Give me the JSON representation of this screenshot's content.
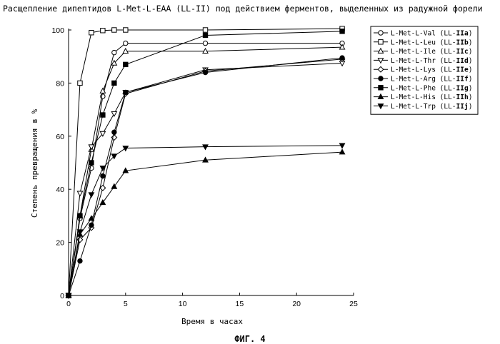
{
  "chart_data": {
    "type": "line",
    "title": "Расщепление дипептидов L-Met-L-EAA (LL-II) под действием ферментов, выделенных из радужной форели",
    "xlabel": "Время в часах",
    "ylabel": "Степень превращения в %",
    "xlim": [
      0,
      25
    ],
    "ylim": [
      0,
      100
    ],
    "xticks": [
      0,
      5,
      10,
      15,
      20,
      25
    ],
    "yticks": [
      0,
      20,
      40,
      60,
      80,
      100
    ],
    "legend_position": "top-right",
    "caption": "ФИГ. 4",
    "series": [
      {
        "name": "L-Met-L-Val",
        "code_prefix": "(LL-",
        "code_bold": "IIa",
        "code_suffix": ")",
        "marker": "circle-open",
        "x": [
          0,
          1,
          2,
          3,
          4,
          5,
          12,
          24
        ],
        "y": [
          0,
          29,
          48,
          75,
          91.5,
          95,
          95,
          95
        ]
      },
      {
        "name": "L-Met-L-Leu",
        "code_prefix": "(LL-",
        "code_bold": "IIb",
        "code_suffix": ")",
        "marker": "square-open",
        "x": [
          0,
          1,
          2,
          3,
          4,
          5,
          12,
          24
        ],
        "y": [
          0,
          80,
          99,
          99.8,
          100,
          100,
          100,
          100.5
        ]
      },
      {
        "name": "L-Met-L-Ile",
        "code_prefix": "(LL-",
        "code_bold": "IIc",
        "code_suffix": ")",
        "marker": "triangle-up-open",
        "x": [
          0,
          1,
          2,
          3,
          4,
          5,
          12,
          24
        ],
        "y": [
          0,
          30,
          55,
          77,
          87.5,
          92,
          92,
          93.5
        ]
      },
      {
        "name": "L-Met-L-Thr",
        "code_prefix": "(LL-",
        "code_bold": "IId",
        "code_suffix": ")",
        "marker": "triangle-down-open",
        "x": [
          0,
          1,
          2,
          3,
          4,
          5,
          12,
          24
        ],
        "y": [
          0,
          38.5,
          56,
          61,
          68.5,
          76.5,
          85,
          87.5
        ]
      },
      {
        "name": "L-Met-L-Lys",
        "code_prefix": "(LL-",
        "code_bold": "IIe",
        "code_suffix": ")",
        "marker": "diamond-open",
        "x": [
          0,
          1,
          2,
          3,
          4,
          5,
          12,
          24
        ],
        "y": [
          0,
          21,
          25.5,
          40.5,
          59.5,
          76,
          84.5,
          89
        ]
      },
      {
        "name": "L-Met-L-Arg",
        "code_prefix": "(LL-",
        "code_bold": "IIf",
        "code_suffix": ")",
        "marker": "circle-filled",
        "x": [
          0,
          1,
          2,
          3,
          4,
          5,
          12,
          24
        ],
        "y": [
          0,
          13,
          26.5,
          45,
          61.5,
          76.5,
          84,
          89.5
        ]
      },
      {
        "name": "L-Met-L-Phe",
        "code_prefix": "(LL-",
        "code_bold": "IIg",
        "code_suffix": ")",
        "marker": "square-filled",
        "x": [
          0,
          1,
          2,
          3,
          4,
          5,
          12,
          24
        ],
        "y": [
          0,
          30,
          50,
          68,
          80,
          87,
          98,
          99.5
        ]
      },
      {
        "name": "L-Met-L-His",
        "code_prefix": "(LL-",
        "code_bold": "IIh",
        "code_suffix": ")",
        "marker": "triangle-up-filled",
        "x": [
          0,
          1,
          2,
          3,
          4,
          5,
          12,
          24
        ],
        "y": [
          0,
          23,
          29,
          35,
          41,
          47,
          51,
          54
        ]
      },
      {
        "name": "L-Met-L-Trp",
        "code_prefix": "(LL-",
        "code_bold": "IIj",
        "code_suffix": ")",
        "marker": "triangle-down-filled",
        "x": [
          0,
          1,
          2,
          3,
          4,
          5,
          12,
          24
        ],
        "y": [
          0,
          24,
          38,
          48,
          52.5,
          55.5,
          56,
          56.5
        ]
      }
    ]
  }
}
